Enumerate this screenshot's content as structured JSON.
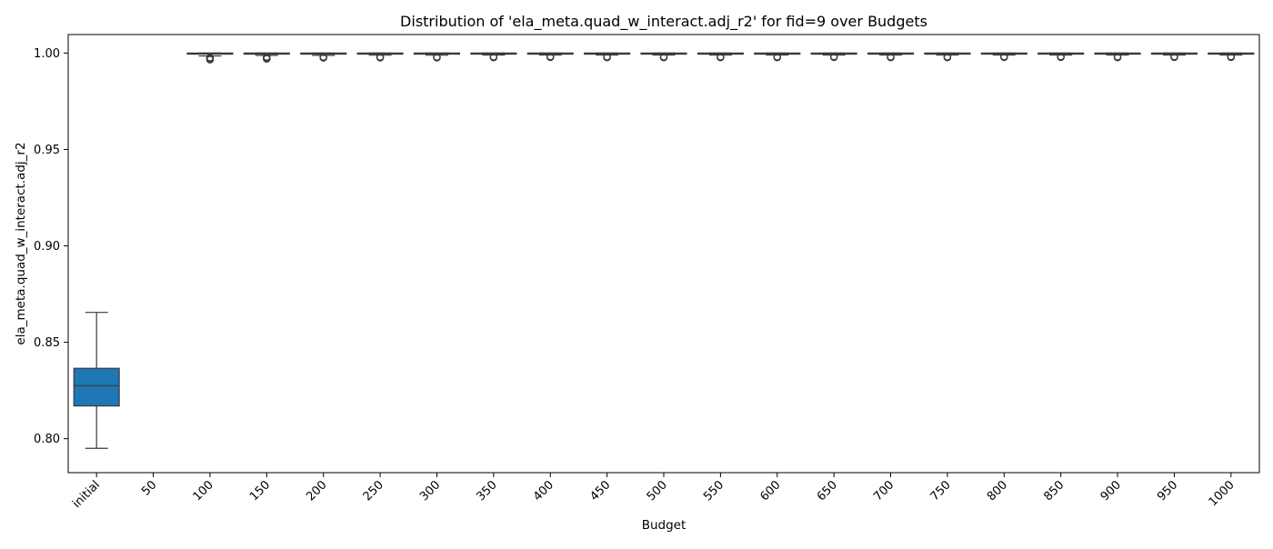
{
  "chart_data": {
    "type": "box",
    "title": "Distribution of 'ela_meta.quad_w_interact.adj_r2' for fid=9 over Budgets",
    "xlabel": "Budget",
    "ylabel": "ela_meta.quad_w_interact.adj_r2",
    "ylim": [
      0.7824,
      1.0096
    ],
    "yticks": [
      0.8,
      0.85,
      0.9,
      0.95,
      1.0
    ],
    "ytick_labels": [
      "0.80",
      "0.85",
      "0.90",
      "0.95",
      "1.00"
    ],
    "categories": [
      "initial",
      "50",
      "100",
      "150",
      "200",
      "250",
      "300",
      "350",
      "400",
      "450",
      "500",
      "550",
      "600",
      "650",
      "700",
      "750",
      "800",
      "850",
      "900",
      "950",
      "1000"
    ],
    "grid": false,
    "colors": {
      "initial": "#1f77b4",
      "others": "#ff7f0e",
      "line": "#3a3a3a"
    },
    "boxes": [
      {
        "category": "initial",
        "whislo": 0.795,
        "q1": 0.817,
        "med": 0.8275,
        "q3": 0.8365,
        "whishi": 0.8655,
        "fliers": []
      },
      {
        "category": "50",
        "empty": true
      },
      {
        "category": "100",
        "whislo": 0.9985,
        "q1": 0.9995,
        "med": 0.9998,
        "q3": 1.0,
        "whishi": 1.0,
        "fliers": [
          0.9966,
          0.9971,
          0.9976
        ]
      },
      {
        "category": "150",
        "whislo": 0.9988,
        "q1": 0.9996,
        "med": 0.9998,
        "q3": 1.0,
        "whishi": 1.0,
        "fliers": [
          0.997,
          0.9975,
          0.998
        ]
      },
      {
        "category": "200",
        "whislo": 0.9988,
        "q1": 0.9996,
        "med": 0.9998,
        "q3": 1.0,
        "whishi": 1.0,
        "fliers": [
          0.9975,
          0.998
        ]
      },
      {
        "category": "250",
        "whislo": 0.9989,
        "q1": 0.9996,
        "med": 0.9998,
        "q3": 1.0,
        "whishi": 1.0,
        "fliers": [
          0.9976,
          0.998
        ]
      },
      {
        "category": "300",
        "whislo": 0.9989,
        "q1": 0.9996,
        "med": 0.9998,
        "q3": 1.0,
        "whishi": 1.0,
        "fliers": [
          0.9976,
          0.998
        ]
      },
      {
        "category": "350",
        "whislo": 0.999,
        "q1": 0.9996,
        "med": 0.9998,
        "q3": 1.0,
        "whishi": 1.0,
        "fliers": [
          0.9977,
          0.9981
        ]
      },
      {
        "category": "400",
        "whislo": 0.999,
        "q1": 0.9997,
        "med": 0.9999,
        "q3": 1.0,
        "whishi": 1.0,
        "fliers": [
          0.9978,
          0.9982
        ]
      },
      {
        "category": "450",
        "whislo": 0.999,
        "q1": 0.9997,
        "med": 0.9999,
        "q3": 1.0,
        "whishi": 1.0,
        "fliers": [
          0.9977,
          0.9981
        ]
      },
      {
        "category": "500",
        "whislo": 0.999,
        "q1": 0.9997,
        "med": 0.9999,
        "q3": 1.0,
        "whishi": 1.0,
        "fliers": [
          0.9977,
          0.9981
        ]
      },
      {
        "category": "550",
        "whislo": 0.999,
        "q1": 0.9997,
        "med": 0.9999,
        "q3": 1.0,
        "whishi": 1.0,
        "fliers": [
          0.9977,
          0.9981
        ]
      },
      {
        "category": "600",
        "whislo": 0.999,
        "q1": 0.9997,
        "med": 0.9999,
        "q3": 1.0,
        "whishi": 1.0,
        "fliers": [
          0.9977,
          0.9981
        ]
      },
      {
        "category": "650",
        "whislo": 0.999,
        "q1": 0.9997,
        "med": 0.9999,
        "q3": 1.0,
        "whishi": 1.0,
        "fliers": [
          0.9978,
          0.9982
        ]
      },
      {
        "category": "700",
        "whislo": 0.999,
        "q1": 0.9997,
        "med": 0.9999,
        "q3": 1.0,
        "whishi": 1.0,
        "fliers": [
          0.9977,
          0.9981
        ]
      },
      {
        "category": "750",
        "whislo": 0.999,
        "q1": 0.9997,
        "med": 0.9999,
        "q3": 1.0,
        "whishi": 1.0,
        "fliers": [
          0.9977,
          0.9981
        ]
      },
      {
        "category": "800",
        "whislo": 0.999,
        "q1": 0.9997,
        "med": 0.9999,
        "q3": 1.0,
        "whishi": 1.0,
        "fliers": [
          0.9978,
          0.9982
        ]
      },
      {
        "category": "850",
        "whislo": 0.999,
        "q1": 0.9997,
        "med": 0.9999,
        "q3": 1.0,
        "whishi": 1.0,
        "fliers": [
          0.9978,
          0.9982
        ]
      },
      {
        "category": "900",
        "whislo": 0.999,
        "q1": 0.9997,
        "med": 0.9999,
        "q3": 1.0,
        "whishi": 1.0,
        "fliers": [
          0.9977,
          0.9981
        ]
      },
      {
        "category": "950",
        "whislo": 0.999,
        "q1": 0.9997,
        "med": 0.9999,
        "q3": 1.0,
        "whishi": 1.0,
        "fliers": [
          0.9978,
          0.9982
        ]
      },
      {
        "category": "1000",
        "whislo": 0.999,
        "q1": 0.9997,
        "med": 0.9999,
        "q3": 1.0,
        "whishi": 1.0,
        "fliers": [
          0.9978,
          0.9982
        ]
      }
    ]
  }
}
